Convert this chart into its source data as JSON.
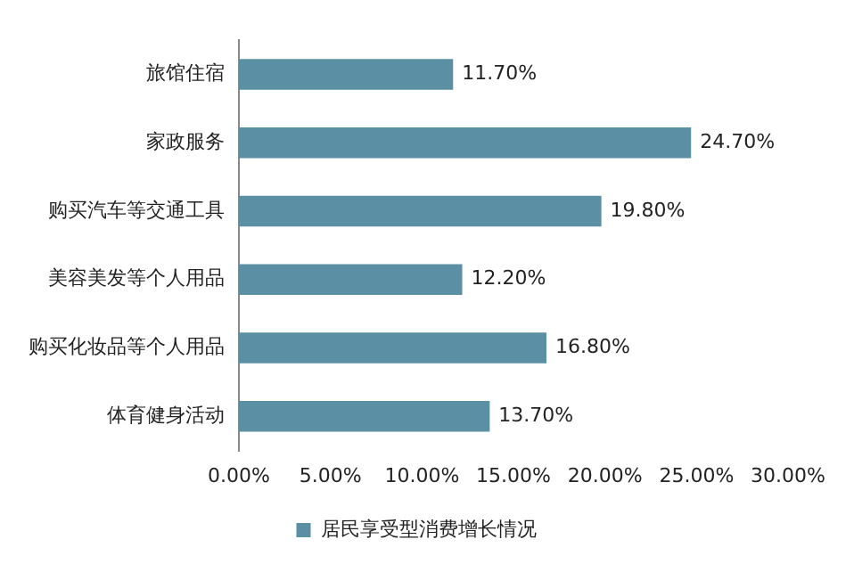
{
  "chart_data": {
    "type": "bar",
    "orientation": "horizontal",
    "categories": [
      "旅馆住宿",
      "家政服务",
      "购买汽车等交通工具",
      "美容美发等个人用品",
      "购买化妆品等个人用品",
      "体育健身活动"
    ],
    "series": [
      {
        "name": "居民享受型消费增长情况",
        "color": "#5b8fa3",
        "values": [
          11.7,
          24.7,
          19.8,
          12.2,
          16.8,
          13.7
        ],
        "value_labels": [
          "11.70%",
          "24.70%",
          "19.80%",
          "12.20%",
          "16.80%",
          "13.70%"
        ]
      }
    ],
    "xlim": [
      0,
      30
    ],
    "xticks": [
      {
        "value": 0,
        "label": "0.00%"
      },
      {
        "value": 5,
        "label": "5.00%"
      },
      {
        "value": 10,
        "label": "10.00%"
      },
      {
        "value": 15,
        "label": "15.00%"
      },
      {
        "value": 20,
        "label": "20.00%"
      },
      {
        "value": 25,
        "label": "25.00%"
      },
      {
        "value": 30,
        "label": "30.00%"
      }
    ],
    "grid": false,
    "legend": "bottom"
  }
}
